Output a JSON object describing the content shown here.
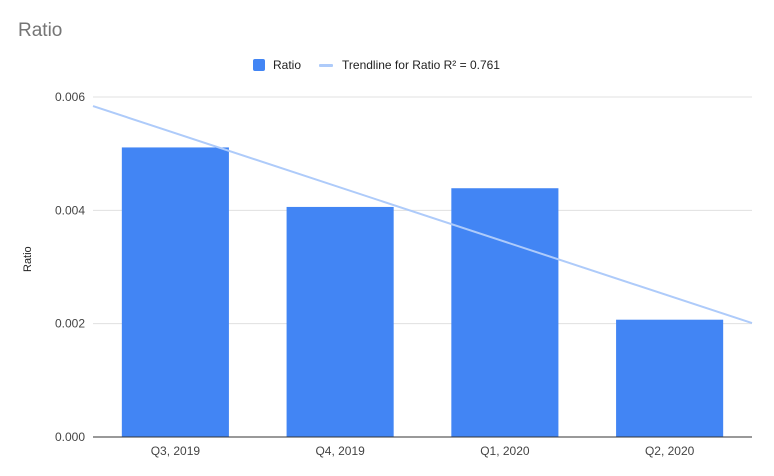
{
  "chart_data": {
    "type": "bar",
    "title": "Ratio",
    "xlabel": "",
    "ylabel": "Ratio",
    "categories": [
      "Q3, 2019",
      "Q4, 2019",
      "Q1, 2020",
      "Q2, 2020"
    ],
    "series": [
      {
        "name": "Ratio",
        "values": [
          0.00511,
          0.00406,
          0.00439,
          0.00207
        ],
        "color": "#4285f4"
      }
    ],
    "trendline": {
      "label": "Trendline for Ratio R² = 0.761",
      "start_value": 0.00584,
      "end_value": 0.00201,
      "color": "#aecbfa"
    },
    "ylim": [
      0,
      0.006
    ],
    "yticks": [
      "0.000",
      "0.002",
      "0.004",
      "0.006"
    ],
    "grid": true,
    "legend_position": "top"
  }
}
